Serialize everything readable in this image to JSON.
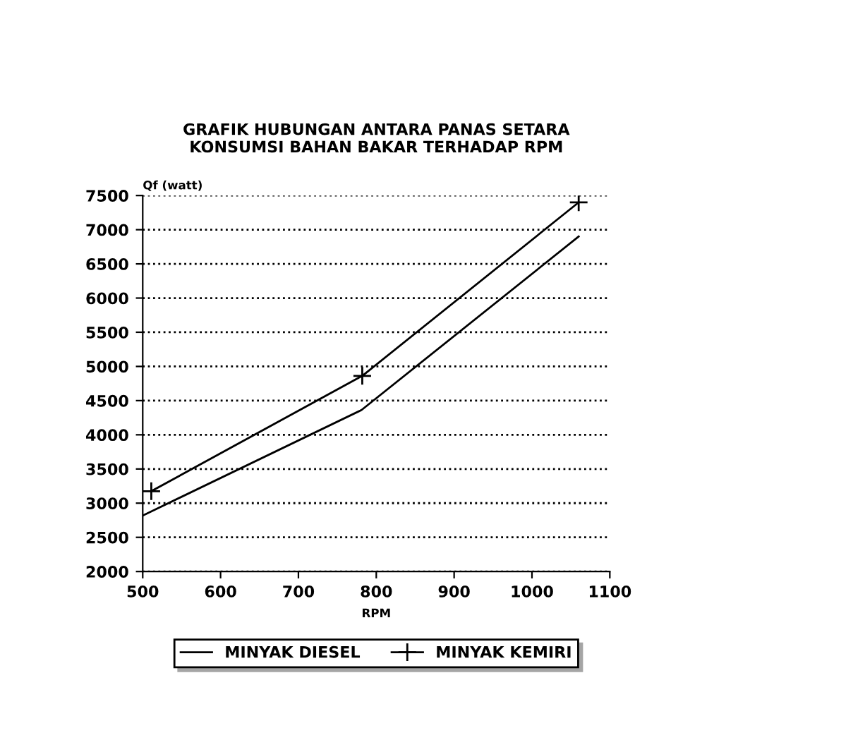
{
  "chart_data": {
    "type": "line",
    "title": "GRAFIK HUBUNGAN ANTARA PANAS SETARA\nKONSUMSI BAHAN BAKAR TERHADAP RPM",
    "ylabel": "Qf (watt)",
    "xlabel": "RPM",
    "series": [
      {
        "name": "MINYAK DIESEL",
        "color": "#000000",
        "marker": "none",
        "x": [
          500,
          781,
          1060
        ],
        "values": [
          2819,
          4362,
          6900
        ]
      },
      {
        "name": "MINYAK KEMIRI",
        "color": "#000000",
        "marker": "cross",
        "x": [
          511,
          782,
          1060
        ],
        "values": [
          3175,
          4862,
          7400
        ]
      }
    ],
    "xlim": [
      500,
      1100
    ],
    "xticks": [
      500,
      600,
      700,
      800,
      900,
      1000,
      1100
    ],
    "ylim": [
      2000,
      7500
    ],
    "yticks": [
      2000,
      2500,
      3000,
      3500,
      4000,
      4500,
      5000,
      5500,
      6000,
      6500,
      7000,
      7500
    ],
    "grid": "y",
    "legend": "bottom"
  }
}
